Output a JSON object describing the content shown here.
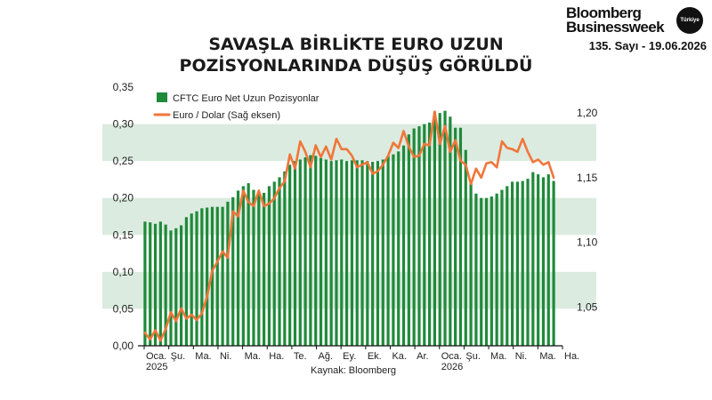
{
  "header": {
    "brand_line1": "Bloomberg",
    "brand_line2": "Businessweek",
    "brand_badge": "Türkiye",
    "issue": "135. Sayı - 19.06.2026"
  },
  "chart_data": {
    "type": "bar+line",
    "title": [
      "SAVAŞLA BİRLİKTE EURO UZUN",
      "POZİSYONLARINDA DÜŞÜŞ GÖRÜLDÜ"
    ],
    "source": "Kaynak: Bloomberg",
    "legend": {
      "placement": "top-left",
      "entries": [
        "CFTC Euro Net Uzun Pozisyonlar",
        "Euro / Dolar (Sağ eksen)"
      ]
    },
    "colors": {
      "bars": "#1f8a3a",
      "line": "#f0763a",
      "band": "#dcebe0"
    },
    "left_axis": {
      "range": [
        0,
        0.35
      ],
      "ticks": [
        "0,00",
        "0,05",
        "0,10",
        "0,15",
        "0,20",
        "0,25",
        "0,30",
        "0,35"
      ]
    },
    "right_axis": {
      "range": [
        1.02,
        1.22
      ],
      "ticks": [
        {
          "value": 1.05,
          "label": "1,05"
        },
        {
          "value": 1.1,
          "label": "1,10"
        },
        {
          "value": 1.15,
          "label": "1,15"
        },
        {
          "value": 1.2,
          "label": "1,20"
        }
      ]
    },
    "x_labels": [
      "Oca.",
      "Şu.",
      "Ma.",
      "Ni.",
      "Ma.",
      "Ha.",
      "Te.",
      "Ağ.",
      "Ey.",
      "Ek.",
      "Ka.",
      "Ar.",
      "Oca.",
      "Şu.",
      "Ma.",
      "Ni.",
      "Ma.",
      "Ha."
    ],
    "year_labels": [
      {
        "index": 0,
        "label": "2025"
      },
      {
        "index": 12,
        "label": "2026"
      }
    ],
    "series": [
      {
        "name": "CFTC Euro Net Uzun Pozisyonlar",
        "axis": "left",
        "values": [
          0.168,
          0.167,
          0.165,
          0.168,
          0.164,
          0.156,
          0.159,
          0.163,
          0.174,
          0.179,
          0.182,
          0.186,
          0.187,
          0.188,
          0.188,
          0.188,
          0.195,
          0.201,
          0.21,
          0.216,
          0.22,
          0.211,
          0.208,
          0.207,
          0.216,
          0.222,
          0.228,
          0.236,
          0.245,
          0.25,
          0.252,
          0.255,
          0.258,
          0.257,
          0.254,
          0.252,
          0.25,
          0.251,
          0.252,
          0.25,
          0.251,
          0.251,
          0.251,
          0.25,
          0.249,
          0.25,
          0.252,
          0.257,
          0.259,
          0.263,
          0.271,
          0.286,
          0.294,
          0.297,
          0.3,
          0.302,
          0.317,
          0.315,
          0.318,
          0.31,
          0.295,
          0.295,
          0.265,
          0.224,
          0.206,
          0.2,
          0.2,
          0.202,
          0.206,
          0.211,
          0.216,
          0.222,
          0.222,
          0.223,
          0.226,
          0.235,
          0.232,
          0.228,
          0.232,
          0.223
        ]
      },
      {
        "name": "Euro / Dolar (Sağ eksen)",
        "axis": "right",
        "values": [
          1.03,
          1.025,
          1.032,
          1.024,
          1.033,
          1.046,
          1.039,
          1.049,
          1.041,
          1.044,
          1.04,
          1.045,
          1.058,
          1.078,
          1.085,
          1.093,
          1.088,
          1.124,
          1.12,
          1.14,
          1.131,
          1.128,
          1.14,
          1.128,
          1.13,
          1.134,
          1.142,
          1.147,
          1.168,
          1.157,
          1.178,
          1.17,
          1.158,
          1.175,
          1.166,
          1.174,
          1.164,
          1.18,
          1.172,
          1.172,
          1.167,
          1.158,
          1.16,
          1.162,
          1.153,
          1.155,
          1.16,
          1.167,
          1.177,
          1.173,
          1.186,
          1.174,
          1.166,
          1.167,
          1.176,
          1.175,
          1.201,
          1.176,
          1.19,
          1.17,
          1.179,
          1.163,
          1.16,
          1.145,
          1.157,
          1.15,
          1.161,
          1.162,
          1.158,
          1.178,
          1.173,
          1.172,
          1.17,
          1.18,
          1.17,
          1.162,
          1.164,
          1.16,
          1.162,
          1.15
        ]
      }
    ],
    "grid": false
  }
}
